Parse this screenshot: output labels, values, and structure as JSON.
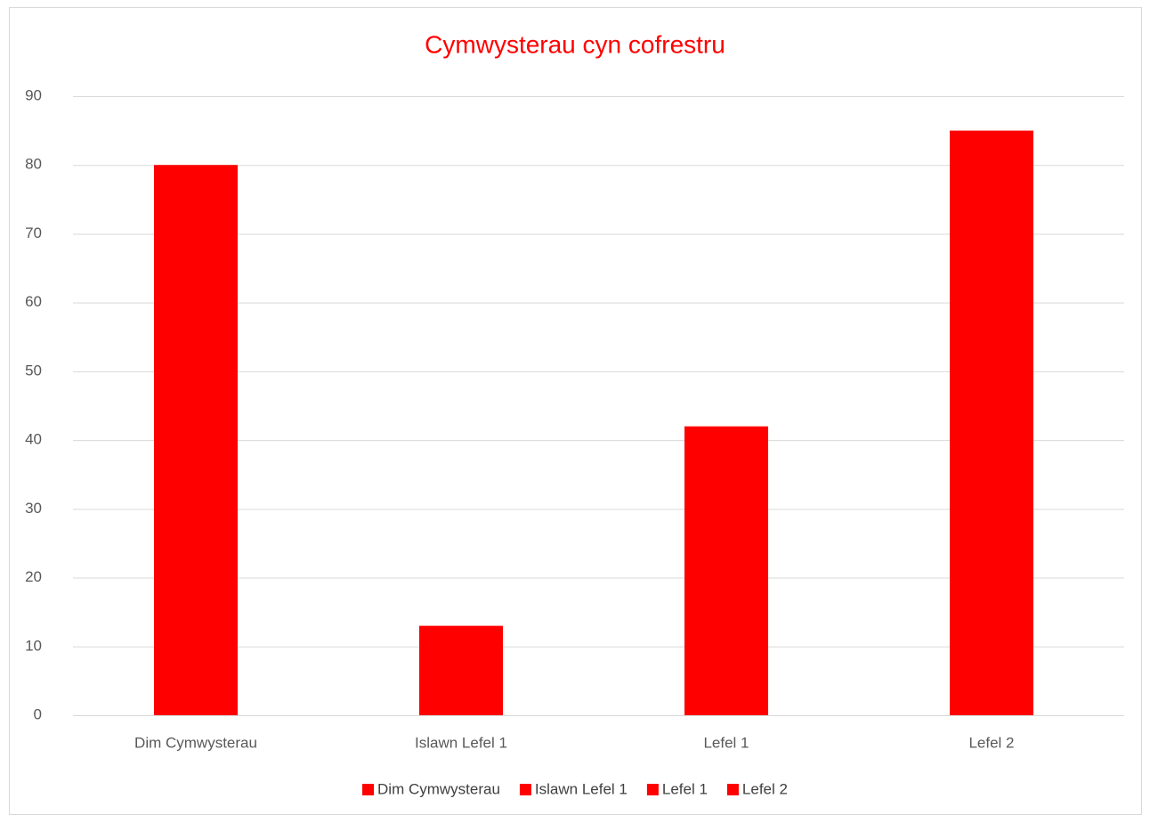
{
  "chart_data": {
    "type": "bar",
    "title": "Cymwysterau cyn cofrestru",
    "categories": [
      "Dim Cymwysterau",
      "Islawn Lefel 1",
      "Lefel 1",
      "Lefel 2"
    ],
    "values": [
      80,
      13,
      42,
      85
    ],
    "color": "#ff0000",
    "ylim": [
      0,
      90
    ],
    "yticks": [
      0,
      10,
      20,
      30,
      40,
      50,
      60,
      70,
      80,
      90
    ],
    "grid": true,
    "legend": "bottom"
  }
}
